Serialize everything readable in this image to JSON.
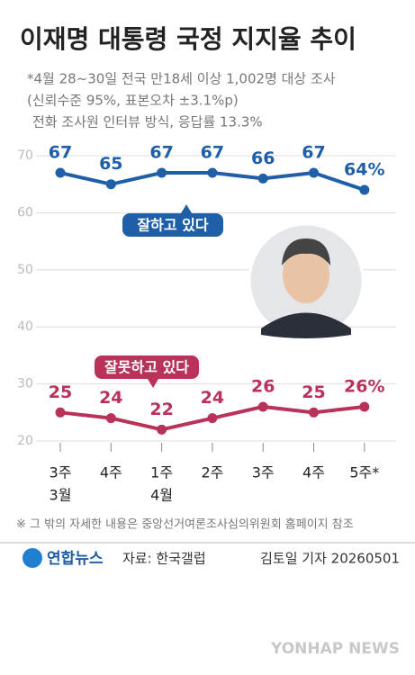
{
  "chart_data": {
    "type": "line",
    "title": "이재명 대통령 국정 지지율 추이",
    "subtitle": [
      "*4월 28~30일 전국 만18세 이상 1,002명 대상 조사",
      "(신뢰수준 95%, 표본오차 ±3.1%p)",
      "전화 조사원 인터뷰 방식, 응답률 13.3%"
    ],
    "categories": [
      "3주",
      "4주",
      "1주",
      "2주",
      "3주",
      "4주",
      "5주*"
    ],
    "month_labels": [
      "3월",
      null,
      "4월",
      null,
      null,
      null,
      null
    ],
    "series": [
      {
        "name": "잘하고 있다",
        "color": "#1f5fa8",
        "values": [
          67,
          65,
          67,
          67,
          66,
          67,
          64
        ],
        "value_labels": [
          "67",
          "65",
          "67",
          "67",
          "66",
          "67",
          "64%"
        ]
      },
      {
        "name": "잘못하고 있다",
        "color": "#b8325a",
        "values": [
          25,
          24,
          22,
          24,
          26,
          25,
          26
        ],
        "value_labels": [
          "25",
          "24",
          "22",
          "24",
          "26",
          "25",
          "26%"
        ]
      }
    ],
    "ylim": [
      20,
      70
    ],
    "yticks": [
      20,
      30,
      40,
      50,
      60,
      70
    ],
    "grid": true,
    "note": "※ 그 밖의 자세한 내용은 중앙선거여론조사심의위원회 홈페이지 참조",
    "logo": "연합뉴스",
    "source": "자료: 한국갤럽",
    "byline": "김토일 기자 20260501",
    "watermark": "YONHAP NEWS"
  }
}
